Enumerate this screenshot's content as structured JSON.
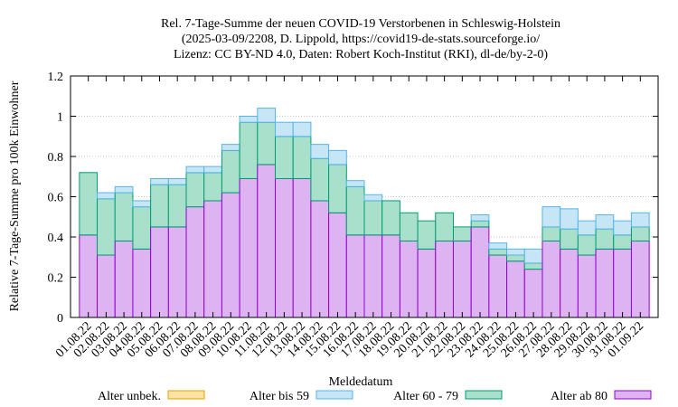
{
  "chart_data": {
    "type": "bar",
    "stacked": true,
    "title_lines": [
      "Rel. 7-Tage-Summe der neuen COVID-19 Verstorbenen in Schleswig-Holstein",
      "(2025-03-09/2208, D. Lippold, https://covid19-de-stats.sourceforge.io/",
      "Lizenz: CC BY-ND 4.0, Daten: Robert Koch-Institut (RKI), dl-de/by-2-0)"
    ],
    "xlabel": "Meldedatum",
    "ylabel": "Relative 7-Tage-Summe pro 100k Einwohner",
    "ylim": [
      0,
      1.2
    ],
    "yticks": [
      "0",
      "0.2",
      "0.4",
      "0.6",
      "0.8",
      "1",
      "1.2"
    ],
    "categories": [
      "01.08.22",
      "02.08.22",
      "03.08.22",
      "04.08.22",
      "05.08.22",
      "06.08.22",
      "07.08.22",
      "08.08.22",
      "09.08.22",
      "10.08.22",
      "11.08.22",
      "12.08.22",
      "13.08.22",
      "14.08.22",
      "15.08.22",
      "16.08.22",
      "17.08.22",
      "18.08.22",
      "19.08.22",
      "20.08.22",
      "21.08.22",
      "22.08.22",
      "23.08.22",
      "24.08.22",
      "25.08.22",
      "26.08.22",
      "27.08.22",
      "28.08.22",
      "29.08.22",
      "30.08.22",
      "31.08.22",
      "01.09.22"
    ],
    "legend_position": "bottom",
    "series": [
      {
        "name": "Alter unbek.",
        "fill": "#fde2a6",
        "stroke": "#e8a000",
        "values": [
          0,
          0,
          0,
          0,
          0,
          0,
          0,
          0,
          0,
          0,
          0,
          0,
          0,
          0,
          0,
          0,
          0,
          0,
          0,
          0,
          0,
          0,
          0,
          0,
          0,
          0,
          0,
          0,
          0,
          0,
          0,
          0
        ]
      },
      {
        "name": "Alter bis 59",
        "fill": "#c6e6f6",
        "stroke": "#56b4e9",
        "values": [
          0,
          0.03,
          0.03,
          0.03,
          0.03,
          0.03,
          0.03,
          0.03,
          0.03,
          0.03,
          0.07,
          0.07,
          0.07,
          0.07,
          0.07,
          0.03,
          0.03,
          0,
          0,
          0,
          0,
          0,
          0.03,
          0.03,
          0.03,
          0.07,
          0.1,
          0.1,
          0.07,
          0.07,
          0.07,
          0.07
        ]
      },
      {
        "name": "Alter 60 - 79",
        "fill": "#a8e0cc",
        "stroke": "#009e73",
        "values": [
          0.31,
          0.28,
          0.24,
          0.21,
          0.21,
          0.21,
          0.17,
          0.14,
          0.21,
          0.28,
          0.21,
          0.21,
          0.21,
          0.21,
          0.24,
          0.24,
          0.17,
          0.17,
          0.14,
          0.14,
          0.14,
          0.07,
          0.03,
          0.03,
          0.03,
          0.03,
          0.07,
          0.1,
          0.1,
          0.1,
          0.07,
          0.07
        ]
      },
      {
        "name": "Alter ab 80",
        "fill": "#deb3f2",
        "stroke": "#9400d3",
        "values": [
          0.41,
          0.31,
          0.38,
          0.34,
          0.45,
          0.45,
          0.55,
          0.58,
          0.62,
          0.69,
          0.76,
          0.69,
          0.69,
          0.58,
          0.52,
          0.41,
          0.41,
          0.41,
          0.38,
          0.34,
          0.38,
          0.38,
          0.45,
          0.31,
          0.28,
          0.24,
          0.38,
          0.34,
          0.31,
          0.34,
          0.34,
          0.38
        ]
      }
    ]
  }
}
